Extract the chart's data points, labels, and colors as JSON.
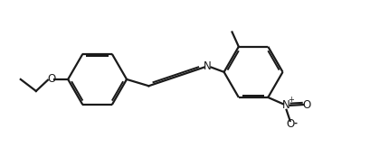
{
  "background_color": "#ffffff",
  "line_color": "#1a1a1a",
  "line_width": 1.6,
  "figsize": [
    4.1,
    1.84
  ],
  "dpi": 100,
  "xlim": [
    0,
    10
  ],
  "ylim": [
    0,
    4.5
  ]
}
